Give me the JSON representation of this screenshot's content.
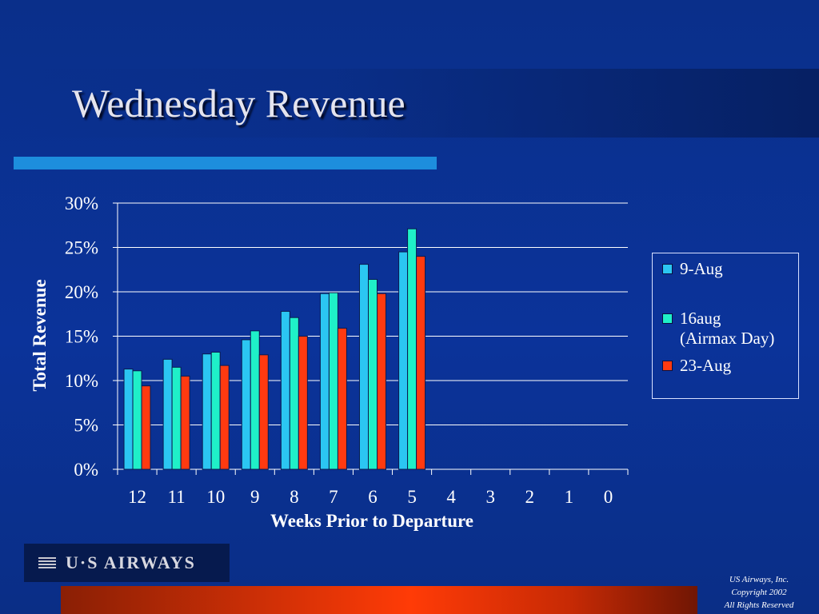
{
  "slide": {
    "title": "Wednesday Revenue",
    "logo_text": "U·S AIRWAYS",
    "copyright_lines": [
      "US Airways, Inc.",
      "Copyright 2002",
      "All Rights Reserved"
    ]
  },
  "colors": {
    "series_1": "#2bc6f2",
    "series_2": "#1ff0c8",
    "series_3": "#ff3a10",
    "grid": "#ffffff",
    "text": "#ffffff"
  },
  "chart_data": {
    "type": "bar",
    "title": "",
    "xlabel": "Weeks Prior to Departure",
    "ylabel": "Total Revenue",
    "categories": [
      "12",
      "11",
      "10",
      "9",
      "8",
      "7",
      "6",
      "5",
      "4",
      "3",
      "2",
      "1",
      "0"
    ],
    "ylim": [
      0,
      30
    ],
    "y_ticks": [
      "0%",
      "5%",
      "10%",
      "15%",
      "20%",
      "25%",
      "30%"
    ],
    "grid": true,
    "legend_position": "right",
    "series": [
      {
        "name": "9-Aug",
        "values": [
          11.3,
          12.4,
          13.0,
          14.6,
          17.8,
          19.8,
          23.1,
          24.5,
          null,
          null,
          null,
          null,
          null
        ]
      },
      {
        "name": "16aug (Airmax Day)",
        "values": [
          11.1,
          11.5,
          13.2,
          15.6,
          17.1,
          19.9,
          21.4,
          27.1,
          null,
          null,
          null,
          null,
          null
        ]
      },
      {
        "name": "23-Aug",
        "values": [
          9.4,
          10.5,
          11.7,
          12.9,
          15.0,
          15.9,
          19.8,
          24.0,
          null,
          null,
          null,
          null,
          null
        ]
      }
    ]
  },
  "legend": {
    "items": [
      {
        "lines": [
          "9-Aug"
        ]
      },
      {
        "lines": [
          "16aug",
          "(Airmax Day)"
        ]
      },
      {
        "lines": [
          "23-Aug"
        ]
      }
    ]
  }
}
